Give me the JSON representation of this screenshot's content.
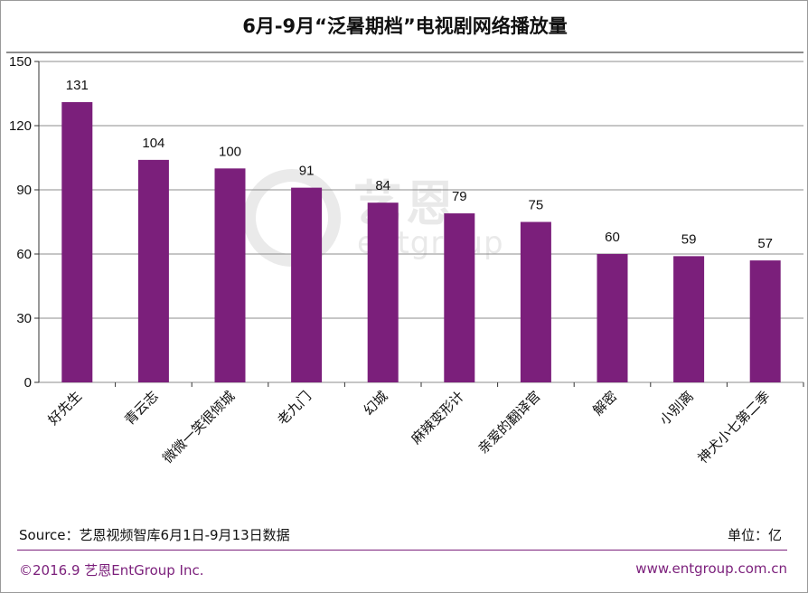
{
  "title": "6月-9月“泛暑期档”电视剧网络播放量",
  "watermark": {
    "chinese": "艺恩",
    "latin": "entgroup"
  },
  "footer": {
    "source": "Source：艺恩视频智库6月1日-9月13日数据",
    "unit": "单位：亿",
    "copyright": "©2016.9 艺恩EntGroup Inc.",
    "website": "www.entgroup.com.cn"
  },
  "colors": {
    "bar": "#7b1f7b",
    "grid": "#8c8c8c",
    "footer_accent": "#7b1f7b"
  },
  "chart_data": {
    "type": "bar",
    "title": "6月-9月“泛暑期档”电视剧网络播放量",
    "categories": [
      "好先生",
      "青云志",
      "微微一笑很倾城",
      "老九门",
      "幻城",
      "麻辣变形计",
      "亲爱的翻译官",
      "解密",
      "小别离",
      "神犬小七第二季"
    ],
    "values": [
      131,
      104,
      100,
      91,
      84,
      79,
      75,
      60,
      59,
      57
    ],
    "ylim": [
      0,
      150
    ],
    "yticks": [
      0,
      30,
      60,
      90,
      120,
      150
    ],
    "grid": true,
    "data_labels": true,
    "unit": "亿"
  }
}
